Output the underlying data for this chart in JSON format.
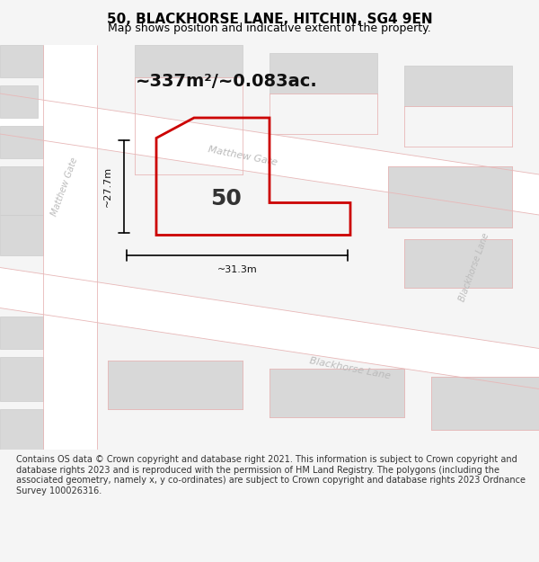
{
  "title": "50, BLACKHORSE LANE, HITCHIN, SG4 9EN",
  "subtitle": "Map shows position and indicative extent of the property.",
  "area_label": "~337m²/~0.083ac.",
  "number_label": "50",
  "dim_h": "~27.7m",
  "dim_w": "~31.3m",
  "footer": "Contains OS data © Crown copyright and database right 2021. This information is subject to Crown copyright and database rights 2023 and is reproduced with the permission of HM Land Registry. The polygons (including the associated geometry, namely x, y co-ordinates) are subject to Crown copyright and database rights 2023 Ordnance Survey 100026316.",
  "bg_color": "#f5f5f5",
  "map_bg": "#f0eeee",
  "street_color": "#ffffff",
  "block_color": "#d8d8d8",
  "road_line_color": "#e8b8b8",
  "property_color": "#cc0000",
  "title_color": "#000000",
  "road_label_color": "#aaaaaa",
  "footer_bg": "#ffffff"
}
